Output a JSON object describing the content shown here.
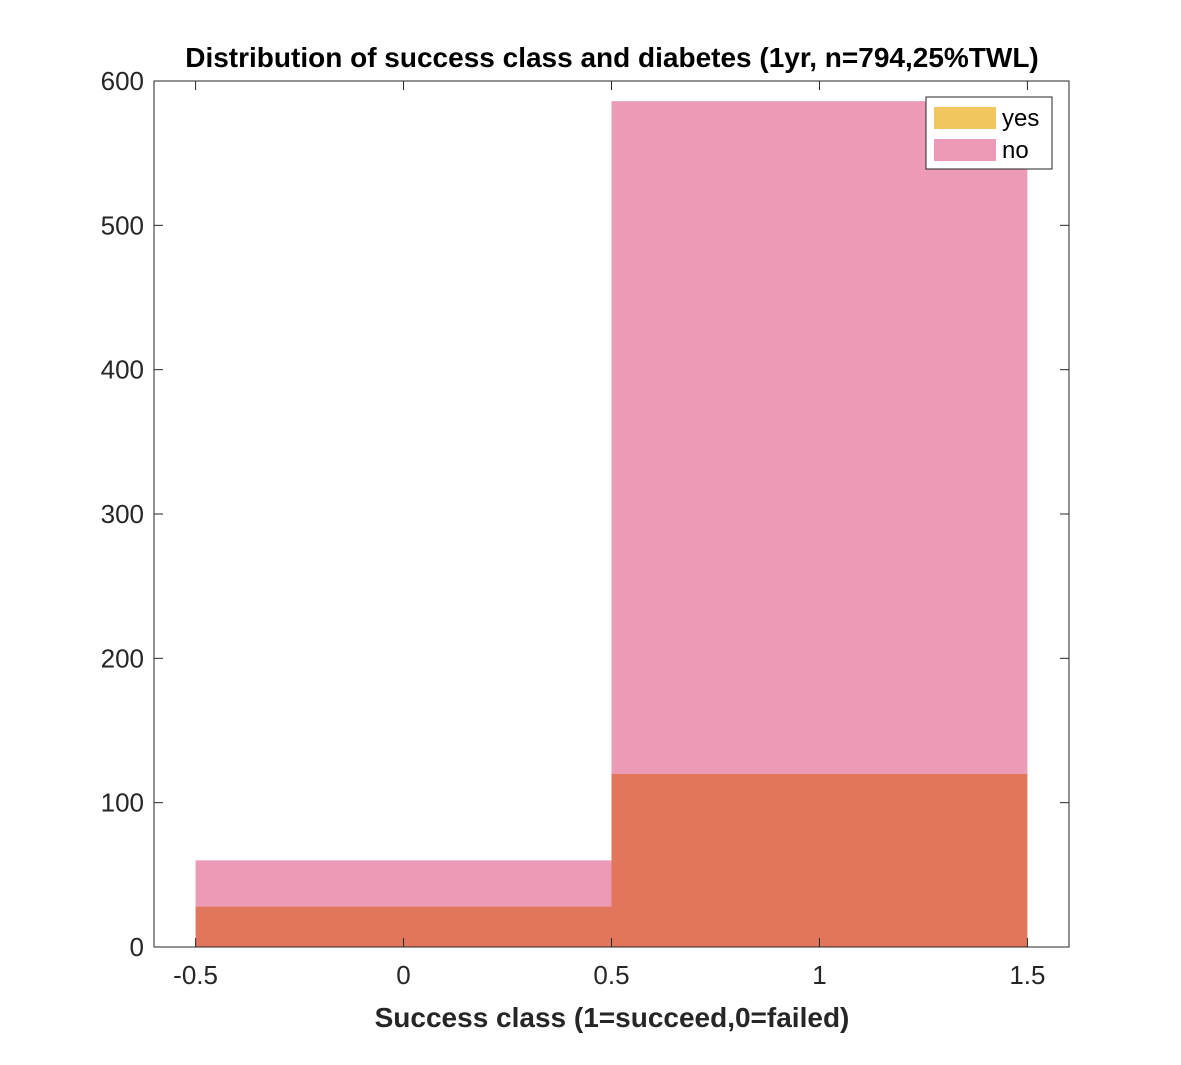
{
  "chart_data": {
    "type": "bar",
    "title": "Distribution of success class and diabetes (1yr, n=794,25%TWL)",
    "xlabel": "Success class (1=succeed,0=failed)",
    "ylabel": "",
    "xlim": [
      -0.6,
      1.6
    ],
    "ylim": [
      0,
      600
    ],
    "xticks": [
      -0.5,
      0,
      0.5,
      1,
      1.5
    ],
    "xtick_labels": [
      "-0.5",
      "0",
      "0.5",
      "1",
      "1.5"
    ],
    "yticks": [
      0,
      100,
      200,
      300,
      400,
      500,
      600
    ],
    "ytick_labels": [
      "0",
      "100",
      "200",
      "300",
      "400",
      "500",
      "600"
    ],
    "bin_edges": [
      -0.5,
      0.5,
      1.5
    ],
    "categories": [
      "0",
      "1"
    ],
    "series": [
      {
        "name": "yes",
        "values": [
          28,
          120
        ],
        "color": "#EDB120"
      },
      {
        "name": "no",
        "values": [
          60,
          586
        ],
        "color": "#E0648C"
      }
    ],
    "overlap_color": "#E1765C",
    "grid": false,
    "legend_position": "top-right"
  }
}
